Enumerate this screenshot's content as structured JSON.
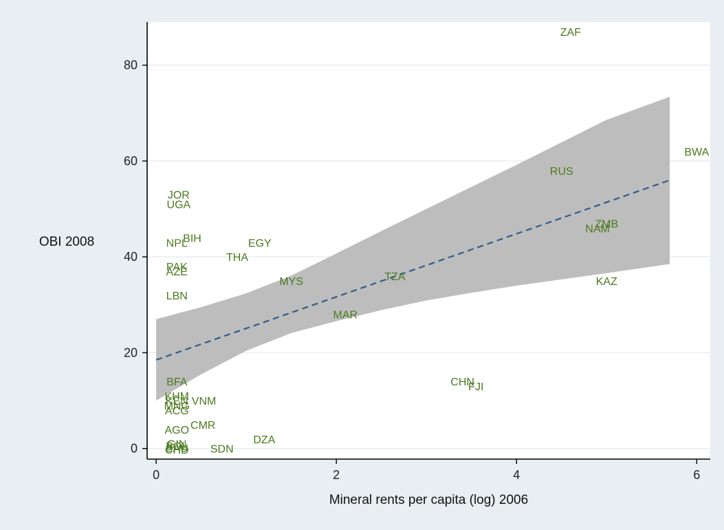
{
  "chart_data": {
    "type": "scatter",
    "title": "",
    "xlabel": "Mineral rents per capita (log) 2006",
    "ylabel": "OBI 2008",
    "xlim": [
      -0.1,
      6.15
    ],
    "ylim": [
      -2.2,
      89
    ],
    "xticks": [
      0,
      2,
      4,
      6
    ],
    "yticks": [
      0,
      20,
      40,
      60,
      80
    ],
    "grid": true,
    "legend": "none",
    "points": [
      {
        "label": "ZAF",
        "x": 4.6,
        "y": 87
      },
      {
        "label": "BWA",
        "x": 6.0,
        "y": 62
      },
      {
        "label": "RUS",
        "x": 4.5,
        "y": 58
      },
      {
        "label": "ZMB",
        "x": 5.0,
        "y": 47
      },
      {
        "label": "NAM",
        "x": 4.9,
        "y": 46
      },
      {
        "label": "KAZ",
        "x": 5.0,
        "y": 35
      },
      {
        "label": "TZA",
        "x": 2.65,
        "y": 36
      },
      {
        "label": "MAR",
        "x": 2.1,
        "y": 28
      },
      {
        "label": "MYS",
        "x": 1.5,
        "y": 35
      },
      {
        "label": "EGY",
        "x": 1.15,
        "y": 43
      },
      {
        "label": "THA",
        "x": 0.9,
        "y": 40
      },
      {
        "label": "JOR",
        "x": 0.25,
        "y": 53
      },
      {
        "label": "UGA",
        "x": 0.25,
        "y": 51
      },
      {
        "label": "BIH",
        "x": 0.4,
        "y": 44
      },
      {
        "label": "NPL",
        "x": 0.23,
        "y": 43
      },
      {
        "label": "PAK",
        "x": 0.23,
        "y": 38
      },
      {
        "label": "AZE",
        "x": 0.23,
        "y": 37
      },
      {
        "label": "LBN",
        "x": 0.23,
        "y": 32
      },
      {
        "label": "CHN",
        "x": 3.4,
        "y": 14
      },
      {
        "label": "FJI",
        "x": 3.55,
        "y": 13
      },
      {
        "label": "BFA",
        "x": 0.23,
        "y": 14
      },
      {
        "label": "KHM",
        "x": 0.23,
        "y": 11
      },
      {
        "label": "VNM",
        "x": 0.53,
        "y": 10
      },
      {
        "label": "KEN",
        "x": 0.23,
        "y": 10
      },
      {
        "label": "MNG",
        "x": 0.23,
        "y": 9
      },
      {
        "label": "ACG",
        "x": 0.23,
        "y": 8
      },
      {
        "label": "CMR",
        "x": 0.52,
        "y": 5
      },
      {
        "label": "AGO",
        "x": 0.23,
        "y": 4
      },
      {
        "label": "DZA",
        "x": 1.2,
        "y": 2
      },
      {
        "label": "SDN",
        "x": 0.73,
        "y": 0
      },
      {
        "label": "GIN",
        "x": 0.23,
        "y": 1
      },
      {
        "label": "BOL",
        "x": 0.23,
        "y": 0.6
      },
      {
        "label": "SAU",
        "x": 0.23,
        "y": 0.2
      },
      {
        "label": "CHD",
        "x": 0.23,
        "y": -0.2
      }
    ],
    "fit_line": {
      "x": [
        0.0,
        5.7
      ],
      "y": [
        18.5,
        56.0
      ]
    },
    "confidence_band": {
      "x": [
        0.0,
        0.5,
        1.0,
        1.5,
        2.0,
        2.5,
        3.0,
        3.5,
        4.0,
        4.5,
        5.0,
        5.7
      ],
      "upper": [
        27,
        29.5,
        32.4,
        36.1,
        40.7,
        45.4,
        50.0,
        54.6,
        59.2,
        63.9,
        68.6,
        73.4
      ],
      "lower": [
        10,
        15.5,
        20.4,
        24.1,
        26.6,
        28.9,
        30.9,
        32.5,
        34.0,
        35.3,
        36.6,
        38.5
      ]
    },
    "colors": {
      "outer_background": "#e8eef1",
      "plot_background": "#ffffff",
      "grid": "#e6edf0",
      "axis": "#000000",
      "point_label": "#4a7a1e",
      "band": "#bdbdbd",
      "fit_line": "#2f5c8a"
    }
  }
}
